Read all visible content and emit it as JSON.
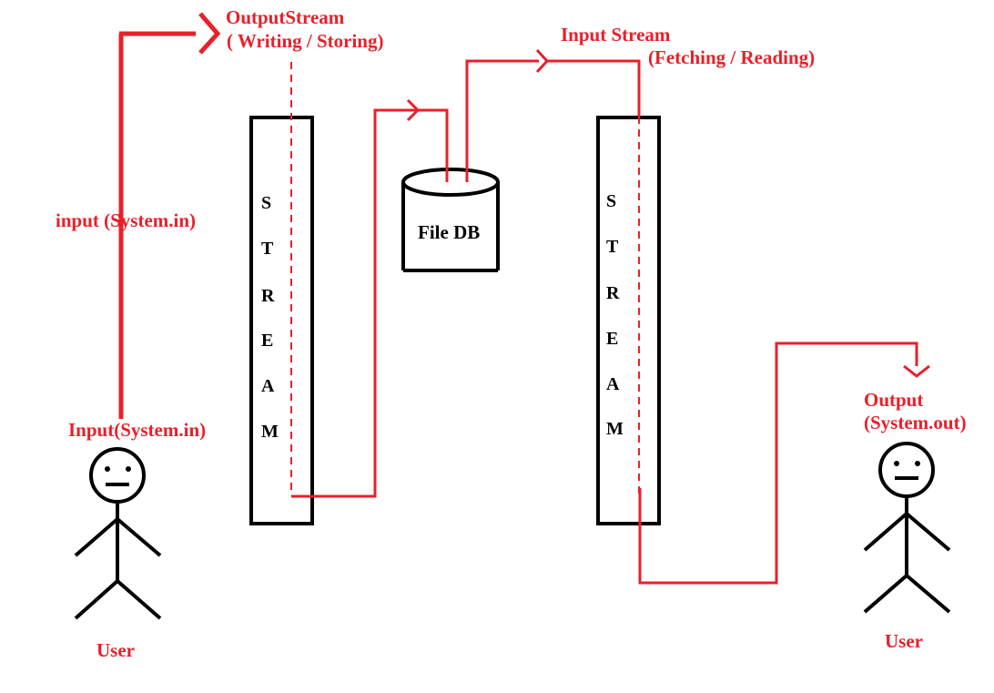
{
  "labels": {
    "output_stream_title": "OutputStream",
    "output_stream_subtitle": "( Writing / Storing)",
    "input_stream_title": "Input Stream",
    "input_stream_subtitle": "(Fetching / Reading)",
    "input_flow": "input (System.in)",
    "input_user": "Input(System.in)",
    "output_title": "Output",
    "output_subtitle": "(System.out)",
    "user_left": "User",
    "user_right": "User",
    "file_db": "File DB"
  },
  "stream_left": [
    "S",
    "T",
    "R",
    "E",
    "A",
    "M"
  ],
  "stream_right": [
    "S",
    "T",
    "R",
    "E",
    "A",
    "M"
  ],
  "colors": {
    "flow": "#e8202a",
    "shapes": "#000000",
    "background": "#ffffff"
  },
  "icons": {
    "user": "stick-figure-icon",
    "database": "cylinder-database-icon",
    "arrow": "chevron-arrow-icon"
  }
}
